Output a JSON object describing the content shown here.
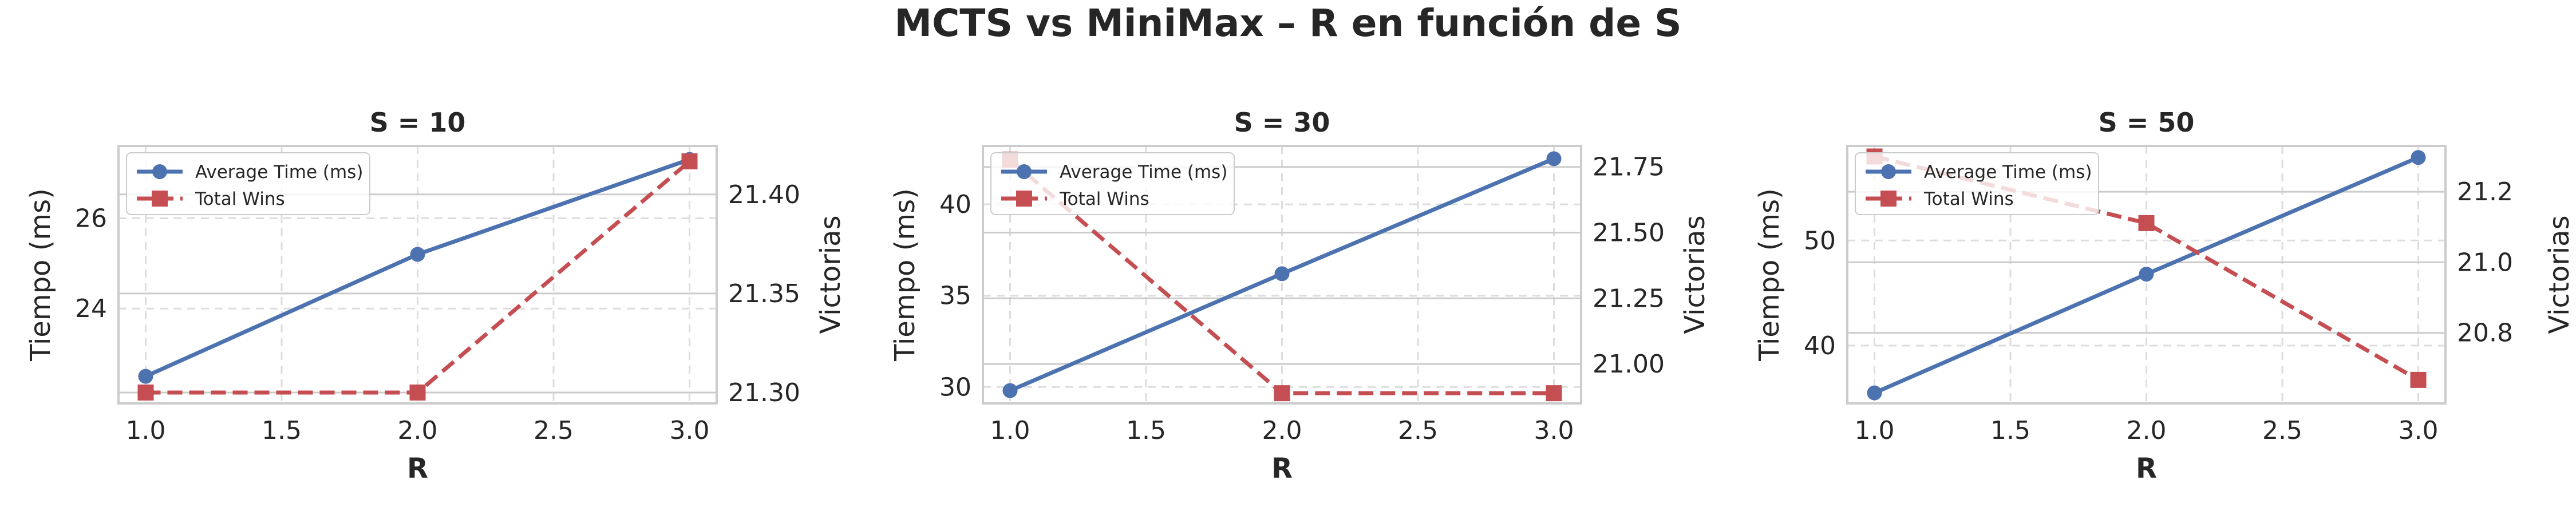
{
  "suptitle": "MCTS vs MiniMax – R en función de S",
  "colors": {
    "time": "#4C72B0",
    "wins": "#C44E52"
  },
  "chart_data": [
    {
      "type": "line",
      "title": "S = 10",
      "xlabel": "R",
      "ylabel": "Tiempo (ms)",
      "y2label": "Victorias",
      "x": [
        1.0,
        2.0,
        3.0
      ],
      "xticks": [
        1.0,
        1.5,
        2.0,
        2.5,
        3.0
      ],
      "xtick_labels": [
        "1.0",
        "1.5",
        "2.0",
        "2.5",
        "3.0"
      ],
      "xlim": [
        0.9,
        3.1
      ],
      "ylim": [
        21.9,
        27.6
      ],
      "yticks": [
        24,
        26
      ],
      "ytick_labels": [
        "24",
        "26"
      ],
      "y2lim": [
        21.2945,
        21.4245
      ],
      "y2ticks": [
        21.3,
        21.35,
        21.4
      ],
      "y2tick_labels": [
        "21.30",
        "21.35",
        "21.40"
      ],
      "grid": true,
      "legend": "top-left",
      "series": [
        {
          "name": "Average Time (ms)",
          "axis": "left",
          "style": "solid",
          "marker": "circle",
          "values": [
            22.5,
            25.2,
            27.3
          ]
        },
        {
          "name": "Total Wins",
          "axis": "right",
          "style": "dashed",
          "marker": "square",
          "values": [
            21.3,
            21.3,
            21.4167
          ]
        }
      ]
    },
    {
      "type": "line",
      "title": "S = 30",
      "xlabel": "R",
      "ylabel": "Tiempo (ms)",
      "y2label": "Victorias",
      "x": [
        1.0,
        2.0,
        3.0
      ],
      "xticks": [
        1.0,
        1.5,
        2.0,
        2.5,
        3.0
      ],
      "xtick_labels": [
        "1.0",
        "1.5",
        "2.0",
        "2.5",
        "3.0"
      ],
      "xlim": [
        0.9,
        3.1
      ],
      "ylim": [
        29.1,
        43.2
      ],
      "yticks": [
        30,
        35,
        40
      ],
      "ytick_labels": [
        "30",
        "35",
        "40"
      ],
      "y2lim": [
        20.85,
        21.83
      ],
      "y2ticks": [
        21.0,
        21.25,
        21.5,
        21.75
      ],
      "y2tick_labels": [
        "21.00",
        "21.25",
        "21.50",
        "21.75"
      ],
      "grid": true,
      "legend": "top-left",
      "series": [
        {
          "name": "Average Time (ms)",
          "axis": "left",
          "style": "solid",
          "marker": "circle",
          "values": [
            29.8,
            36.2,
            42.5
          ]
        },
        {
          "name": "Total Wins",
          "axis": "right",
          "style": "dashed",
          "marker": "square",
          "values": [
            21.7778,
            20.8889,
            20.8889
          ]
        }
      ]
    },
    {
      "type": "line",
      "title": "S = 50",
      "xlabel": "R",
      "ylabel": "Tiempo (ms)",
      "y2label": "Victorias",
      "x": [
        1.0,
        2.0,
        3.0
      ],
      "xticks": [
        1.0,
        1.5,
        2.0,
        2.5,
        3.0
      ],
      "xtick_labels": [
        "1.0",
        "1.5",
        "2.0",
        "2.5",
        "3.0"
      ],
      "xlim": [
        0.9,
        3.1
      ],
      "ylim": [
        34.5,
        59.0
      ],
      "yticks": [
        40,
        50
      ],
      "ytick_labels": [
        "40",
        "50"
      ],
      "y2lim": [
        20.6,
        21.33
      ],
      "y2ticks": [
        20.8,
        21.0,
        21.2
      ],
      "y2tick_labels": [
        "20.8",
        "21.0",
        "21.2"
      ],
      "grid": true,
      "legend": "top-left",
      "series": [
        {
          "name": "Average Time (ms)",
          "axis": "left",
          "style": "solid",
          "marker": "circle",
          "values": [
            35.5,
            46.8,
            57.9
          ]
        },
        {
          "name": "Total Wins",
          "axis": "right",
          "style": "dashed",
          "marker": "square",
          "values": [
            21.3,
            21.1111,
            20.6667
          ]
        }
      ]
    }
  ]
}
